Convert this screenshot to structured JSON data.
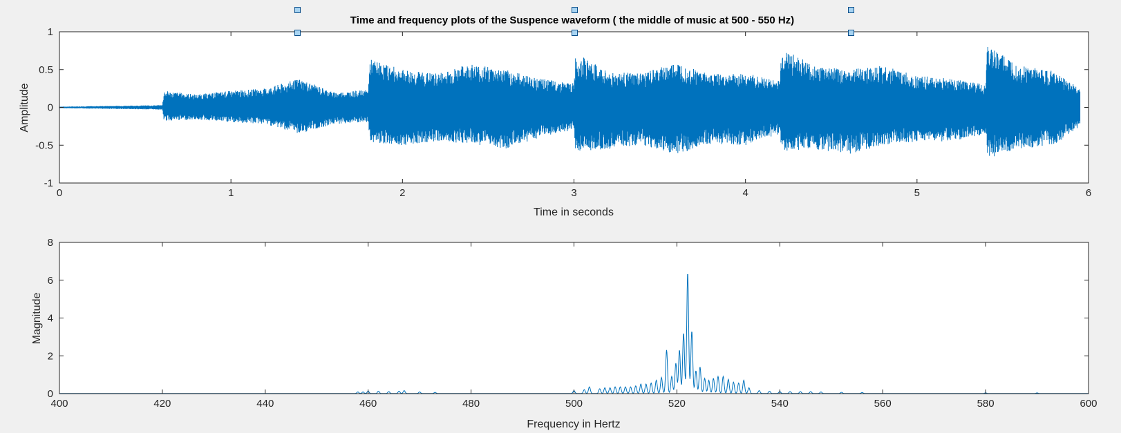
{
  "colors": {
    "line": "#0072bd",
    "axes": "#262626",
    "grid_bg": "#ffffff",
    "figure_bg": "#f0f0f0",
    "handle_fill": "#a8d4f2",
    "handle_stroke": "#0b4f8a"
  },
  "title": "Time and frequency plots of the Suspence waveform ( the middle of music at 500 - 550 Hz)",
  "chart_data": [
    {
      "type": "line",
      "title": "Time and frequency plots of the Suspence waveform ( the middle of music at 500 - 550 Hz)",
      "xlabel": "Time in seconds",
      "ylabel": "Amplitude",
      "xlim": [
        0,
        6
      ],
      "ylim": [
        -1,
        1
      ],
      "xticks": [
        "0",
        "1",
        "2",
        "3",
        "4",
        "5",
        "6"
      ],
      "yticks": [
        "-1",
        "-0.5",
        "0",
        "0.5",
        "1"
      ],
      "grid": false,
      "series": [
        {
          "x": [
            0,
            0.3,
            0.6,
            0.61,
            0.8,
            1.0,
            1.2,
            1.4,
            1.6,
            1.8,
            1.81,
            2.0,
            2.2,
            2.4,
            2.6,
            2.8,
            3.0,
            3.01,
            3.2,
            3.4,
            3.6,
            3.8,
            4.0,
            4.2,
            4.21,
            4.4,
            4.6,
            4.8,
            5.0,
            5.2,
            5.4,
            5.41,
            5.6,
            5.8,
            5.95
          ],
          "upper": [
            0.01,
            0.02,
            0.03,
            0.22,
            0.17,
            0.22,
            0.25,
            0.38,
            0.2,
            0.23,
            0.64,
            0.5,
            0.45,
            0.58,
            0.5,
            0.38,
            0.32,
            0.72,
            0.47,
            0.45,
            0.6,
            0.44,
            0.45,
            0.35,
            0.79,
            0.55,
            0.5,
            0.55,
            0.42,
            0.38,
            0.3,
            0.82,
            0.55,
            0.48,
            0.25
          ],
          "lower": [
            -0.01,
            -0.02,
            -0.03,
            -0.18,
            -0.16,
            -0.2,
            -0.22,
            -0.35,
            -0.22,
            -0.2,
            -0.46,
            -0.5,
            -0.45,
            -0.48,
            -0.55,
            -0.4,
            -0.3,
            -0.58,
            -0.55,
            -0.5,
            -0.62,
            -0.48,
            -0.5,
            -0.35,
            -0.58,
            -0.55,
            -0.62,
            -0.5,
            -0.45,
            -0.45,
            -0.35,
            -0.68,
            -0.55,
            -0.5,
            -0.25
          ]
        }
      ]
    },
    {
      "type": "line",
      "title": "",
      "xlabel": "Frequency in Hertz",
      "ylabel": "Magnitude",
      "xlim": [
        400,
        600
      ],
      "ylim": [
        0,
        8
      ],
      "xticks": [
        "400",
        "420",
        "440",
        "460",
        "480",
        "500",
        "520",
        "540",
        "560",
        "580",
        "600"
      ],
      "yticks": [
        "0",
        "2",
        "4",
        "6",
        "8"
      ],
      "grid": false,
      "series": [
        {
          "peaks": [
            [
              458,
              0.08
            ],
            [
              459,
              0.08
            ],
            [
              460,
              0.12
            ],
            [
              462,
              0.12
            ],
            [
              464,
              0.1
            ],
            [
              466,
              0.12
            ],
            [
              467,
              0.15
            ],
            [
              470,
              0.08
            ],
            [
              473,
              0.06
            ],
            [
              500,
              0.15
            ],
            [
              502,
              0.2
            ],
            [
              503,
              0.35
            ],
            [
              505,
              0.25
            ],
            [
              506,
              0.3
            ],
            [
              507,
              0.3
            ],
            [
              508,
              0.35
            ],
            [
              509,
              0.35
            ],
            [
              510,
              0.35
            ],
            [
              511,
              0.35
            ],
            [
              512,
              0.4
            ],
            [
              513,
              0.5
            ],
            [
              514,
              0.5
            ],
            [
              515,
              0.55
            ],
            [
              516,
              0.7
            ],
            [
              517,
              0.85
            ],
            [
              518,
              2.3
            ],
            [
              519,
              0.9
            ],
            [
              519.8,
              1.6
            ],
            [
              520.5,
              2.3
            ],
            [
              521.3,
              3.2
            ],
            [
              522.1,
              6.4
            ],
            [
              522.9,
              3.3
            ],
            [
              523.7,
              1.2
            ],
            [
              524.5,
              1.4
            ],
            [
              525.4,
              0.8
            ],
            [
              526.2,
              0.7
            ],
            [
              527.1,
              0.8
            ],
            [
              528,
              0.9
            ],
            [
              529,
              0.9
            ],
            [
              530,
              0.75
            ],
            [
              531,
              0.6
            ],
            [
              532,
              0.55
            ],
            [
              533,
              0.7
            ],
            [
              534,
              0.3
            ],
            [
              536,
              0.15
            ],
            [
              538,
              0.12
            ],
            [
              540,
              0.1
            ],
            [
              542,
              0.1
            ],
            [
              544,
              0.1
            ],
            [
              546,
              0.1
            ],
            [
              548,
              0.08
            ],
            [
              552,
              0.06
            ],
            [
              556,
              0.05
            ],
            [
              580,
              0.03
            ],
            [
              590,
              0.03
            ]
          ]
        }
      ]
    }
  ]
}
